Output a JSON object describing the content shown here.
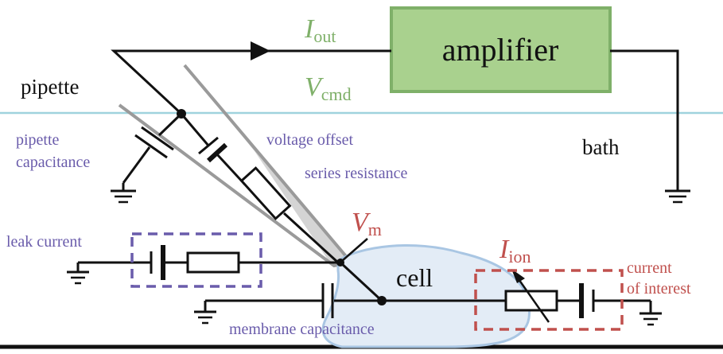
{
  "labels": {
    "pipette": "pipette",
    "amplifier": "amplifier",
    "bath": "bath",
    "cell": "cell",
    "i_out": {
      "main": "I",
      "sub": "out"
    },
    "v_cmd": {
      "main": "V",
      "sub": "cmd"
    },
    "v_m": {
      "main": "V",
      "sub": "m"
    },
    "i_ion": {
      "main": "I",
      "sub": "ion"
    },
    "pipette_capacitance": [
      "pipette",
      "capacitance"
    ],
    "voltage_offset": "voltage offset",
    "series_resistance": "series resistance",
    "leak_current": "leak current",
    "membrane_capacitance": "membrane capacitance",
    "current_of_interest": [
      "current",
      "of interest"
    ]
  },
  "colors": {
    "amplifier_fill": "#a9d18e",
    "amplifier_border": "#7fb069",
    "bath_line": "#9fd3dd",
    "cell_fill": "#e3ecf6",
    "cell_border": "#a9c6e3",
    "pipette_glass": "#d0d0d0",
    "purple": "#6a5cab",
    "red": "#c0504d",
    "green": "#7fb069"
  }
}
